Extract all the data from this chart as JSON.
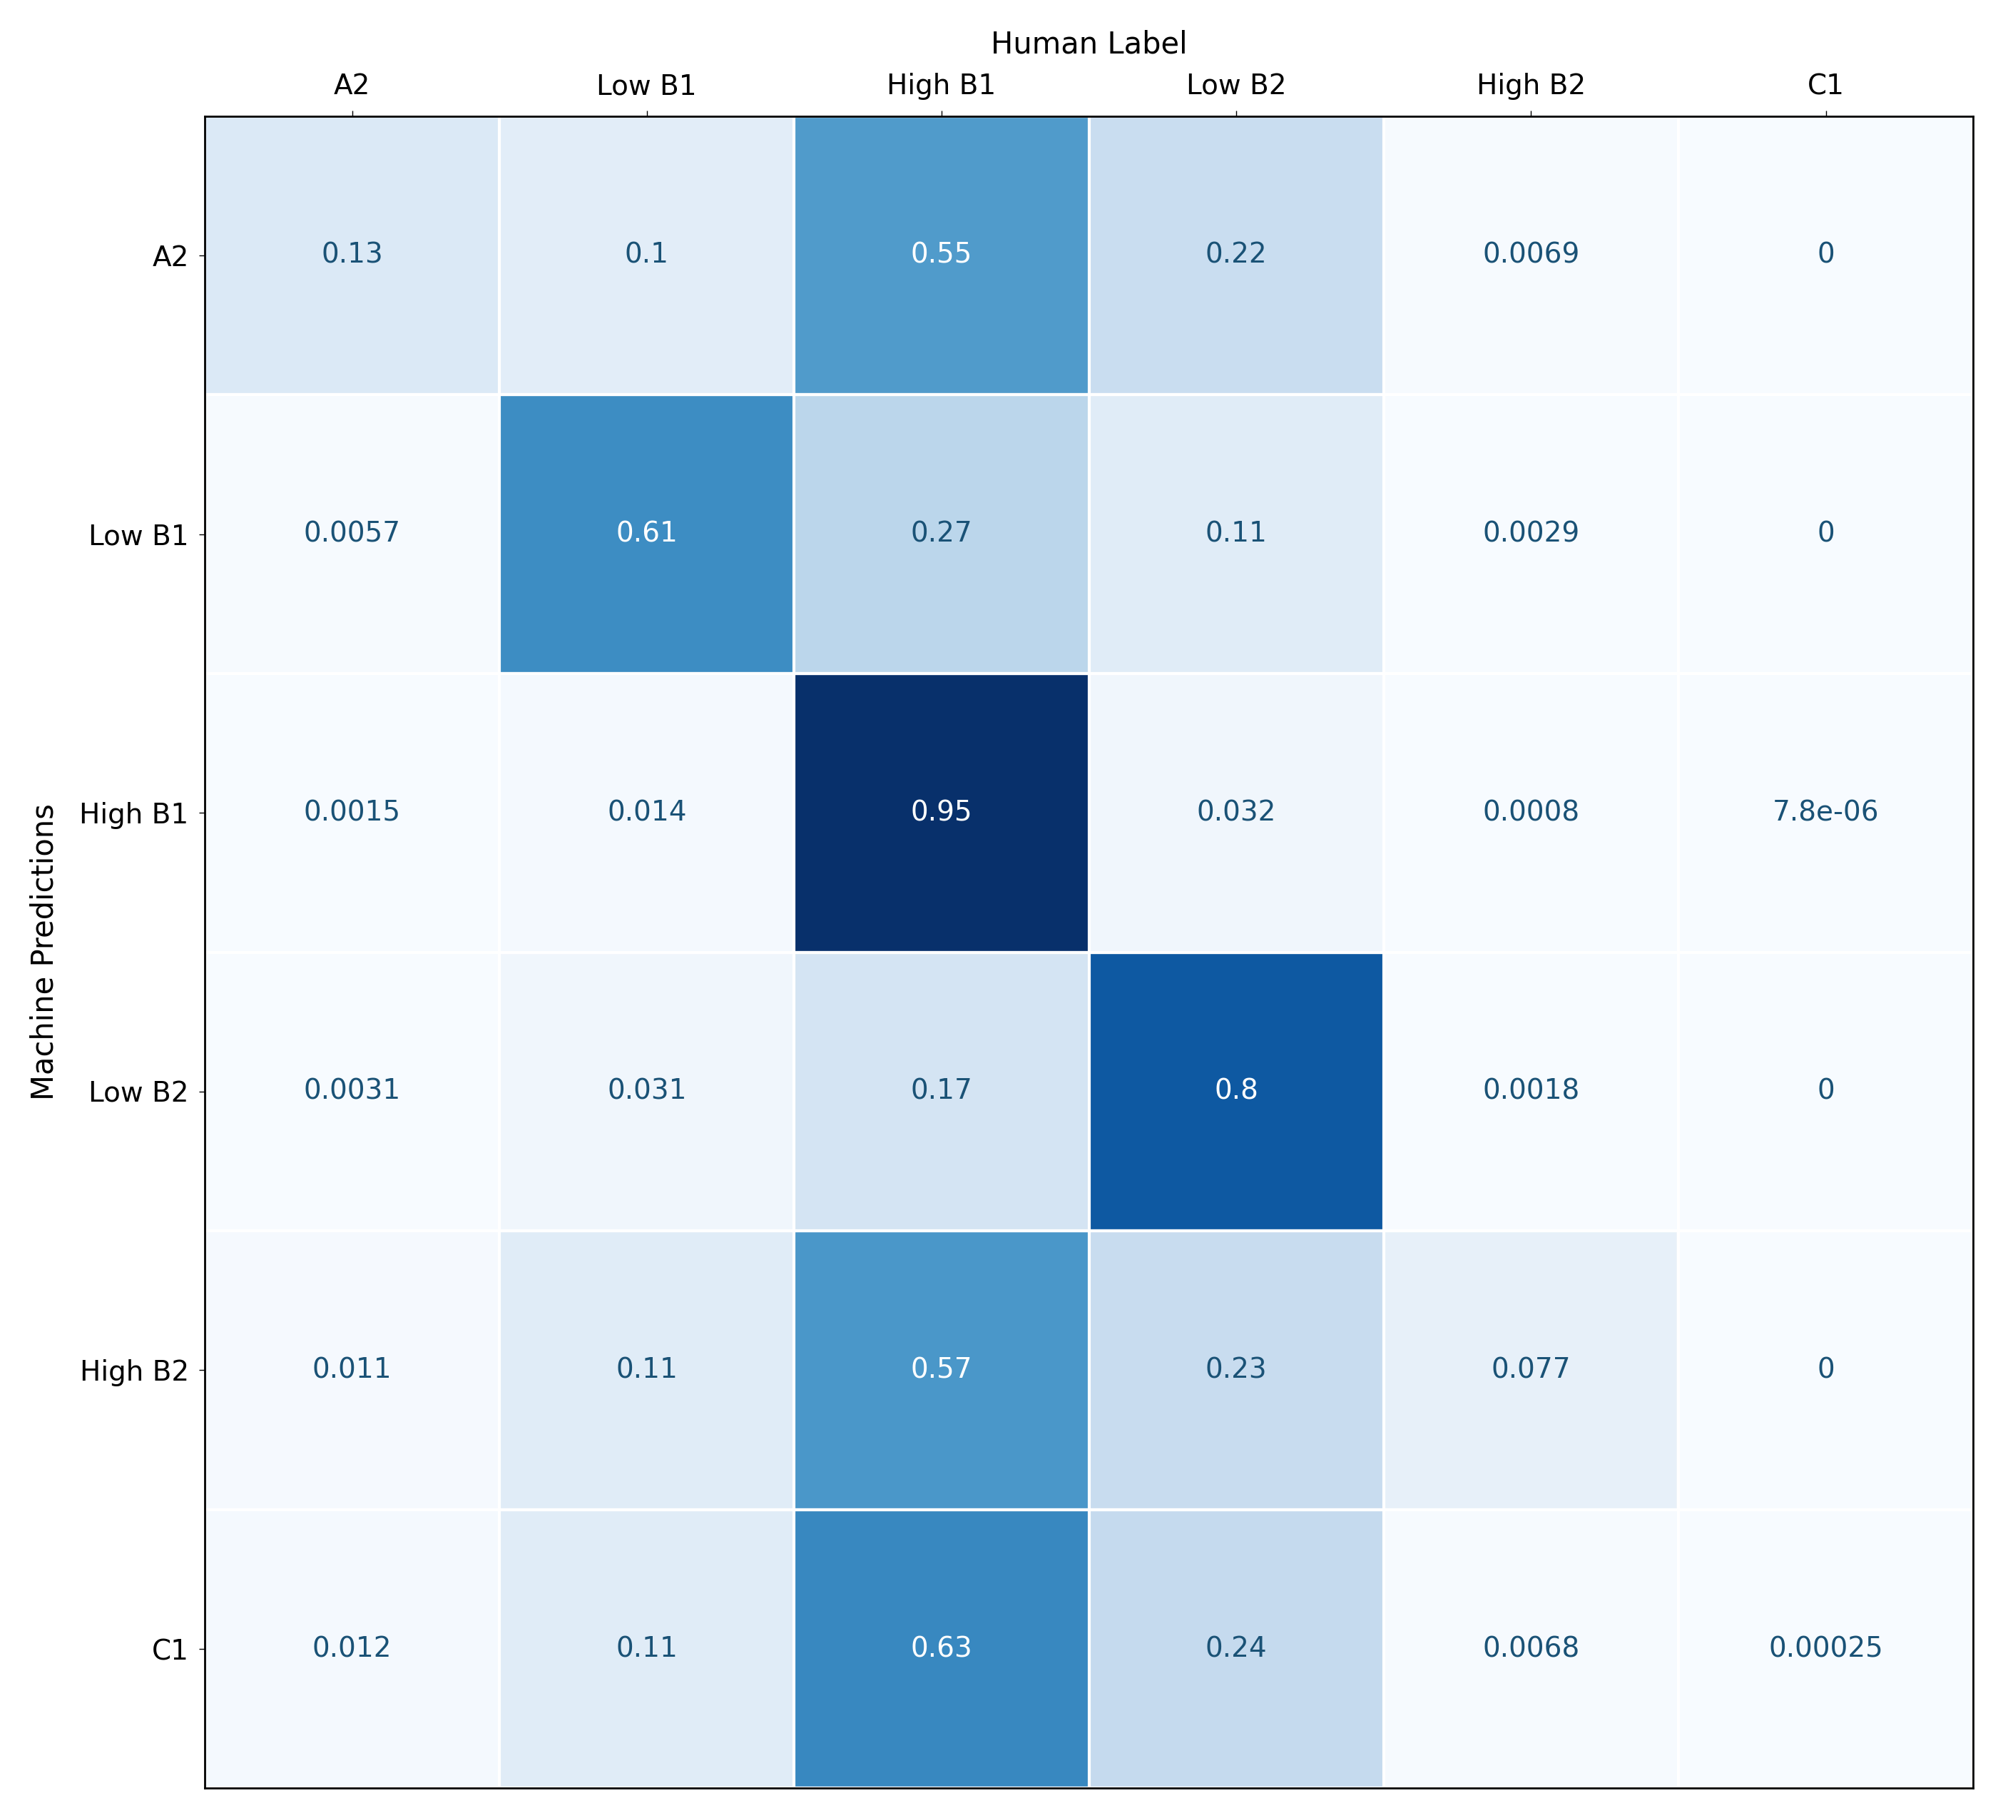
{
  "labels": [
    "A2",
    "Low B1",
    "High B1",
    "Low B2",
    "High B2",
    "C1"
  ],
  "matrix": [
    [
      0.13,
      0.1,
      0.55,
      0.22,
      0.0069,
      0
    ],
    [
      0.0057,
      0.61,
      0.27,
      0.11,
      0.0029,
      0
    ],
    [
      0.0015,
      0.014,
      0.95,
      0.032,
      0.0008,
      7.8e-06
    ],
    [
      0.0031,
      0.031,
      0.17,
      0.8,
      0.0018,
      0
    ],
    [
      0.011,
      0.11,
      0.57,
      0.23,
      0.077,
      0
    ],
    [
      0.012,
      0.11,
      0.63,
      0.24,
      0.0068,
      0.00025
    ]
  ],
  "cell_texts": [
    [
      "0.13",
      "0.1",
      "0.55",
      "0.22",
      "0.0069",
      "0"
    ],
    [
      "0.0057",
      "0.61",
      "0.27",
      "0.11",
      "0.0029",
      "0"
    ],
    [
      "0.0015",
      "0.014",
      "0.95",
      "0.032",
      "0.0008",
      "7.8e-06"
    ],
    [
      "0.0031",
      "0.031",
      "0.17",
      "0.8",
      "0.0018",
      "0"
    ],
    [
      "0.011",
      "0.11",
      "0.57",
      "0.23",
      "0.077",
      "0"
    ],
    [
      "0.012",
      "0.11",
      "0.63",
      "0.24",
      "0.0068",
      "0.00025"
    ]
  ],
  "xlabel": "Human Label",
  "ylabel": "Machine Predictions",
  "cmap": "Blues",
  "label_fontsize": 30,
  "tick_fontsize": 28,
  "cell_fontsize": 28,
  "background_color": "#ffffff",
  "text_dark_color": "#1a5276",
  "text_light_color": "#ffffff",
  "brightness_threshold": 0.6
}
